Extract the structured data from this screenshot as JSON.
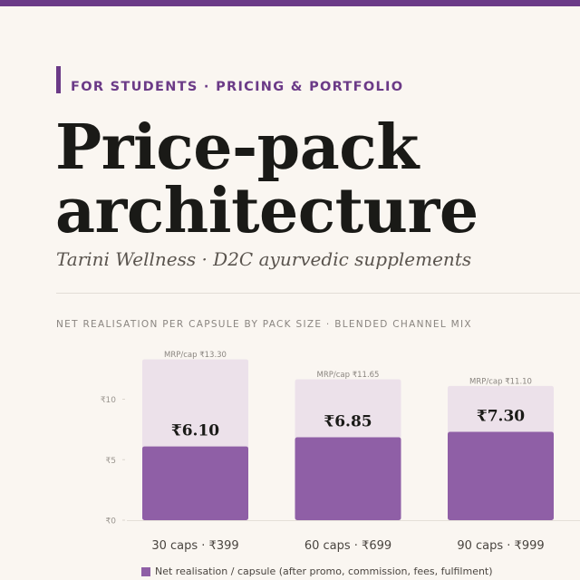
{
  "header": {
    "eyebrow": "FOR STUDENTS  ·  PRICING & PORTFOLIO",
    "title_line1": "Price-pack",
    "title_line2": "architecture",
    "subtitle": "Tarini Wellness  ·  D2C ayurvedic supplements"
  },
  "colors": {
    "accent": "#6b3a87",
    "net_bar": "#8f5fa6",
    "mrp_bar": "#ece1ea",
    "background": "#faf6f1"
  },
  "chart_data": {
    "type": "bar",
    "title": "NET REALISATION PER CAPSULE BY PACK SIZE  ·  BLENDED CHANNEL MIX",
    "categories": [
      "30 caps  ·  ₹399",
      "60 caps  ·  ₹699",
      "90 caps  ·  ₹999"
    ],
    "series": [
      {
        "name": "Net realisation / capsule  (after promo, commission, fees, fulfilment)",
        "values": [
          6.1,
          6.85,
          7.3
        ],
        "labels": [
          "₹6.10",
          "₹6.85",
          "₹7.30"
        ]
      },
      {
        "values": [
          13.3,
          11.65,
          11.1
        ],
        "labels": [
          "MRP/cap ₹13.30",
          "MRP/cap ₹11.65",
          "MRP/cap ₹11.10"
        ]
      }
    ],
    "yticks": [
      0,
      5,
      10
    ],
    "ytick_labels": [
      "₹0",
      "₹5",
      "₹10"
    ],
    "ylim": [
      0,
      13.3
    ],
    "legend": "bottom"
  }
}
